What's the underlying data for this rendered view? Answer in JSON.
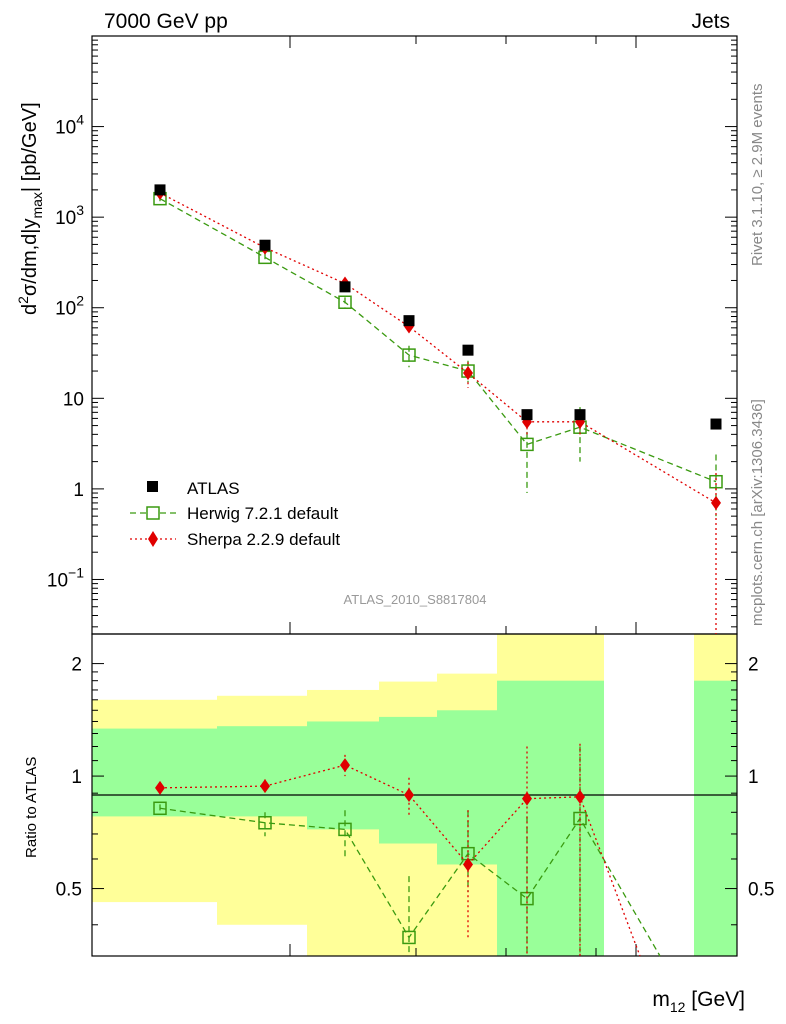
{
  "header": {
    "left": "7000 GeV pp",
    "right": "Jets"
  },
  "side_labels": {
    "rivet": "Rivet 3.1.10, ≥ 2.9M events",
    "mcplots": "mcplots.cern.ch [arXiv:1306.3436]"
  },
  "watermark": "ATLAS_2010_S8817804",
  "axes": {
    "ylabel_top": "d²σ/dm,d|y max| [pb/GeV]",
    "ylabel_top_parts": {
      "d": "d",
      "sup": "2",
      "main": "σ/dm,d|y",
      "sub": "max",
      "tail": "| [pb/GeV]"
    },
    "ylabel_ratio": "Ratio to ATLAS",
    "xlabel": "m12 [GeV]",
    "xlabel_parts": {
      "main": "m",
      "sub": "12",
      "tail": " [GeV]"
    }
  },
  "chart_data": [
    {
      "type": "scatter",
      "panel": "main",
      "yscale": "log",
      "ylim": [
        0.025,
        100000
      ],
      "y_ticks": [
        {
          "value": 0.1,
          "label": "10",
          "sup": "−1"
        },
        {
          "value": 1,
          "label": "1",
          "sup": ""
        },
        {
          "value": 10,
          "label": "10",
          "sup": ""
        },
        {
          "value": 100,
          "label": "10",
          "sup": "2"
        },
        {
          "value": 1000,
          "label": "10",
          "sup": "3"
        },
        {
          "value": 10000,
          "label": "10",
          "sup": "4"
        }
      ],
      "legend_position": "bottom-left",
      "series": [
        {
          "name": "ATLAS",
          "color": "#000000",
          "marker": "square-filled",
          "points": [
            {
              "x": 160,
              "y": 2000
            },
            {
              "x": 265,
              "y": 490
            },
            {
              "x": 345,
              "y": 170
            },
            {
              "x": 409,
              "y": 72
            },
            {
              "x": 468,
              "y": 34
            },
            {
              "x": 527,
              "y": 6.6
            },
            {
              "x": 580,
              "y": 6.6
            },
            {
              "x": 716,
              "y": 5.2
            }
          ]
        },
        {
          "name": "Herwig 7.2.1 default",
          "color": "#3a9a10",
          "marker": "square-open",
          "line": "dashed",
          "points": [
            {
              "x": 160,
              "y": 1600,
              "lo": 1500,
              "hi": 1700
            },
            {
              "x": 265,
              "y": 360,
              "lo": 330,
              "hi": 400
            },
            {
              "x": 345,
              "y": 115,
              "lo": 100,
              "hi": 130
            },
            {
              "x": 409,
              "y": 30,
              "lo": 22,
              "hi": 38
            },
            {
              "x": 468,
              "y": 20,
              "lo": 15,
              "hi": 26
            },
            {
              "x": 527,
              "y": 3.1,
              "lo": 0.9,
              "hi": 5.5
            },
            {
              "x": 580,
              "y": 4.8,
              "lo": 2.0,
              "hi": 8.0
            },
            {
              "x": 716,
              "y": 1.2,
              "lo": 0.5,
              "hi": 2.4
            }
          ]
        },
        {
          "name": "Sherpa 2.2.9 default",
          "color": "#e00000",
          "marker": "diamond",
          "line": "dotted",
          "points": [
            {
              "x": 160,
              "y": 1850,
              "lo": 1750,
              "hi": 1950
            },
            {
              "x": 265,
              "y": 460,
              "lo": 430,
              "hi": 490
            },
            {
              "x": 345,
              "y": 185,
              "lo": 170,
              "hi": 200
            },
            {
              "x": 409,
              "y": 62,
              "lo": 55,
              "hi": 70
            },
            {
              "x": 468,
              "y": 19,
              "lo": 13,
              "hi": 25
            },
            {
              "x": 527,
              "y": 5.5,
              "lo": 4.0,
              "hi": 7.0
            },
            {
              "x": 580,
              "y": 5.5,
              "lo": 4.0,
              "hi": 7.0
            },
            {
              "x": 716,
              "y": 0.7,
              "lo": 0.02,
              "hi": 1.5
            }
          ]
        }
      ]
    },
    {
      "type": "scatter",
      "panel": "ratio",
      "yscale": "log",
      "ylim": [
        0.33,
        2.4
      ],
      "y_ticks": [
        {
          "value": 0.5,
          "label": "0.5"
        },
        {
          "value": 1,
          "label": "1"
        },
        {
          "value": 2,
          "label": "2"
        }
      ],
      "bands": [
        {
          "x0": 92,
          "x1": 217,
          "yellow": [
            0.46,
            1.6
          ],
          "green": [
            0.78,
            1.34
          ]
        },
        {
          "x0": 217,
          "x1": 307,
          "yellow": [
            0.4,
            1.64
          ],
          "green": [
            0.78,
            1.36
          ]
        },
        {
          "x0": 307,
          "x1": 379,
          "yellow": [
            0.33,
            1.7
          ],
          "green": [
            0.72,
            1.4
          ]
        },
        {
          "x0": 379,
          "x1": 437,
          "yellow": [
            0.33,
            1.79
          ],
          "green": [
            0.66,
            1.44
          ]
        },
        {
          "x0": 437,
          "x1": 497,
          "yellow": [
            0.33,
            1.88
          ],
          "green": [
            0.58,
            1.5
          ]
        },
        {
          "x0": 497,
          "x1": 604,
          "yellow": [
            0.33,
            2.4
          ],
          "green": [
            0.33,
            1.8
          ]
        },
        {
          "x0": 694,
          "x1": 737,
          "yellow": [
            0.33,
            2.4
          ],
          "green": [
            0.33,
            1.8
          ]
        }
      ],
      "series": [
        {
          "name": "Herwig 7.2.1 default",
          "color": "#3a9a10",
          "marker": "square-open",
          "line": "dashed",
          "points": [
            {
              "x": 160,
              "y": 0.82,
              "lo": 0.8,
              "hi": 0.84
            },
            {
              "x": 265,
              "y": 0.75,
              "lo": 0.69,
              "hi": 0.8
            },
            {
              "x": 345,
              "y": 0.72,
              "lo": 0.61,
              "hi": 0.81
            },
            {
              "x": 409,
              "y": 0.37,
              "lo": 0.33,
              "hi": 0.54
            },
            {
              "x": 468,
              "y": 0.62,
              "lo": 0.49,
              "hi": 0.81
            },
            {
              "x": 527,
              "y": 0.47,
              "lo": 0.33,
              "hi": 0.78
            },
            {
              "x": 580,
              "y": 0.77,
              "lo": 0.33,
              "hi": 1.2
            },
            {
              "x": 660,
              "y": 0.3
            }
          ]
        },
        {
          "name": "Sherpa 2.2.9 default",
          "color": "#e00000",
          "marker": "diamond",
          "line": "dotted",
          "points": [
            {
              "x": 160,
              "y": 0.93,
              "lo": 0.91,
              "hi": 0.95
            },
            {
              "x": 265,
              "y": 0.94,
              "lo": 0.9,
              "hi": 0.98
            },
            {
              "x": 345,
              "y": 1.07,
              "lo": 1.0,
              "hi": 1.14
            },
            {
              "x": 409,
              "y": 0.89,
              "lo": 0.78,
              "hi": 0.99
            },
            {
              "x": 468,
              "y": 0.58,
              "lo": 0.37,
              "hi": 0.81
            },
            {
              "x": 527,
              "y": 0.87,
              "lo": 0.33,
              "hi": 1.2
            },
            {
              "x": 580,
              "y": 0.88,
              "lo": 0.33,
              "hi": 1.22
            },
            {
              "x": 640,
              "y": 0.3
            }
          ]
        }
      ]
    }
  ]
}
